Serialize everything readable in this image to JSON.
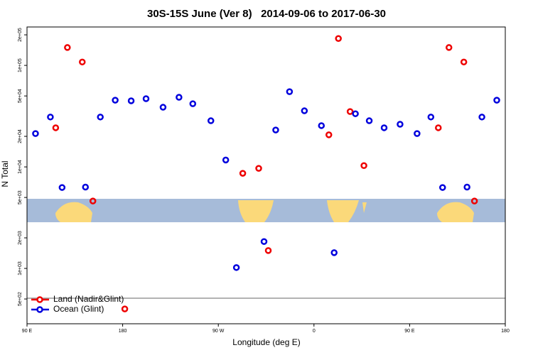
{
  "chart_data": {
    "type": "scatter",
    "title": "30S-15S June (Ver 8)   2014-09-06 to 2017-06-30",
    "x_label": "Longitude (deg E)",
    "y_label": "N Total",
    "log_y": true,
    "legend": "bottom-left",
    "xlim": [
      90,
      540
    ],
    "xticks": [
      {
        "value": 90,
        "label": "90 E"
      },
      {
        "value": 180,
        "label": "180"
      },
      {
        "value": 270,
        "label": "90 W"
      },
      {
        "value": 360,
        "label": "0"
      },
      {
        "value": 450,
        "label": "90 E"
      },
      {
        "value": 540,
        "label": "180"
      }
    ],
    "ylim": [
      285,
      239000
    ],
    "yticks": [
      {
        "value": 500,
        "label": "5e+02"
      },
      {
        "value": 1000,
        "label": "1e+03"
      },
      {
        "value": 2000,
        "label": "2e+03"
      },
      {
        "value": 5000,
        "label": "5e+03"
      },
      {
        "value": 10000,
        "label": "1e+04"
      },
      {
        "value": 20000,
        "label": "2e+04"
      },
      {
        "value": 50000,
        "label": "5e+04"
      },
      {
        "value": 100000,
        "label": "1e+05"
      },
      {
        "value": 200000,
        "label": "2e+05"
      }
    ],
    "series": [
      {
        "name": "Land (Nadir&Glint)",
        "color": "#ee0000",
        "x": [
          128,
          142,
          117,
          152,
          182,
          293,
          308,
          317,
          374,
          383,
          394,
          407,
          477,
          487,
          501,
          511
        ],
        "values": [
          150000,
          108000,
          24300,
          4610,
          399,
          8650,
          9680,
          1500,
          20700,
          184000,
          35100,
          10300,
          24300,
          150000,
          108000,
          4610
        ]
      },
      {
        "name": "Ocean (Glint)",
        "color": "#0000dd",
        "x": [
          98,
          112,
          123,
          145,
          159,
          173,
          188,
          202,
          218,
          233,
          246,
          263,
          277,
          287,
          313,
          324,
          337,
          351,
          367,
          379,
          399,
          412,
          426,
          441,
          457,
          470,
          481,
          504,
          518,
          532
        ],
        "values": [
          21300,
          31000,
          6270,
          6330,
          31000,
          45400,
          44800,
          47000,
          38700,
          48500,
          41900,
          28500,
          11700,
          1020,
          1840,
          23100,
          55100,
          35700,
          25500,
          1430,
          33400,
          28500,
          24300,
          26300,
          21300,
          31000,
          6270,
          6330,
          31000,
          45400
        ]
      }
    ]
  }
}
